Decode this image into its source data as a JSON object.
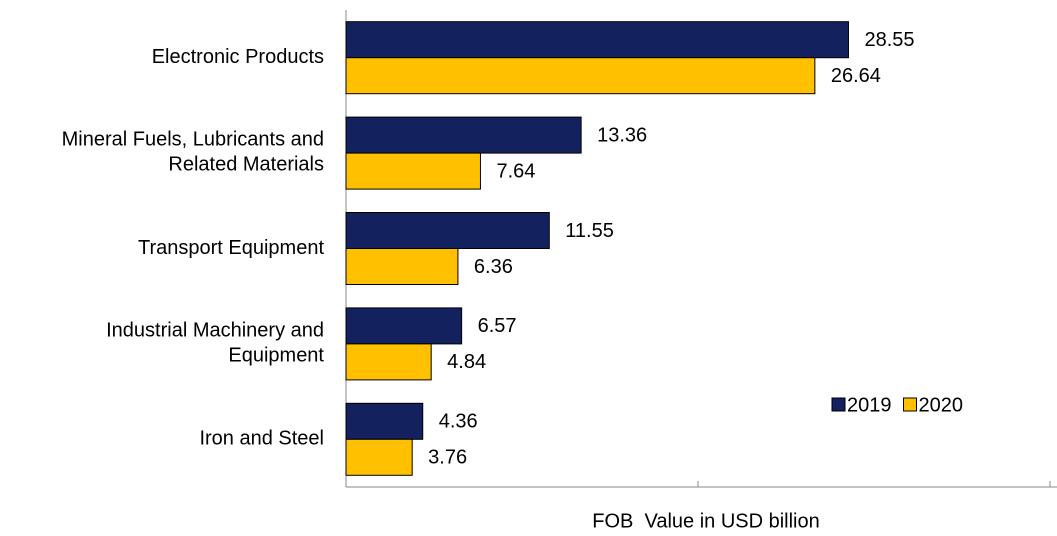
{
  "chart_data": {
    "type": "bar",
    "orientation": "horizontal",
    "x_label": "FOB  Value in USD billion",
    "categories": [
      "Electronic Products",
      "Mineral Fuels, Lubricants and Related Materials",
      "Transport Equipment",
      "Industrial Machinery and Equipment",
      "Iron and Steel"
    ],
    "series": [
      {
        "name": "2019",
        "color": "#14215f",
        "values": [
          28.55,
          13.36,
          11.55,
          6.57,
          4.36
        ]
      },
      {
        "name": "2020",
        "color": "#ffc000",
        "values": [
          26.64,
          7.64,
          6.36,
          4.84,
          3.76
        ]
      }
    ],
    "xlim": [
      0,
      40
    ],
    "xticks": [
      0,
      20,
      40
    ],
    "legend": "lower right",
    "grid": false
  }
}
